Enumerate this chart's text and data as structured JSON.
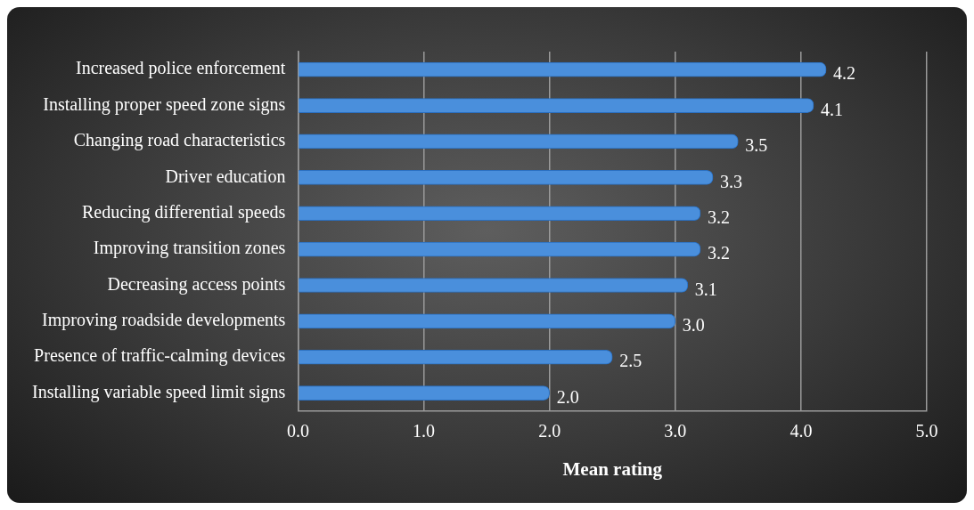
{
  "chart_data": {
    "type": "bar",
    "orientation": "horizontal",
    "xlabel": "Mean rating",
    "categories": [
      "Increased police enforcement",
      "Installing proper speed zone signs",
      "Changing road characteristics",
      "Driver education",
      "Reducing differential speeds",
      "Improving transition zones",
      "Decreasing access points",
      "Improving roadside developments",
      "Presence of traffic-calming devices",
      "Installing variable speed limit signs"
    ],
    "values": [
      4.2,
      4.1,
      3.5,
      3.3,
      3.2,
      3.2,
      3.1,
      3.0,
      2.5,
      2.0
    ],
    "value_labels": [
      "4.2",
      "4.1",
      "3.5",
      "3.3",
      "3.2",
      "3.2",
      "3.1",
      "3.0",
      "2.5",
      "2.0"
    ],
    "color": "#4a8fdc",
    "xlim": [
      0,
      5
    ],
    "xticks": [
      {
        "value": 0,
        "label": "0.0"
      },
      {
        "value": 1,
        "label": "1.0"
      },
      {
        "value": 2,
        "label": "2.0"
      },
      {
        "value": 3,
        "label": "3.0"
      },
      {
        "value": 4,
        "label": "4.0"
      },
      {
        "value": 5,
        "label": "5.0"
      }
    ],
    "grid": "x",
    "legend": false
  }
}
